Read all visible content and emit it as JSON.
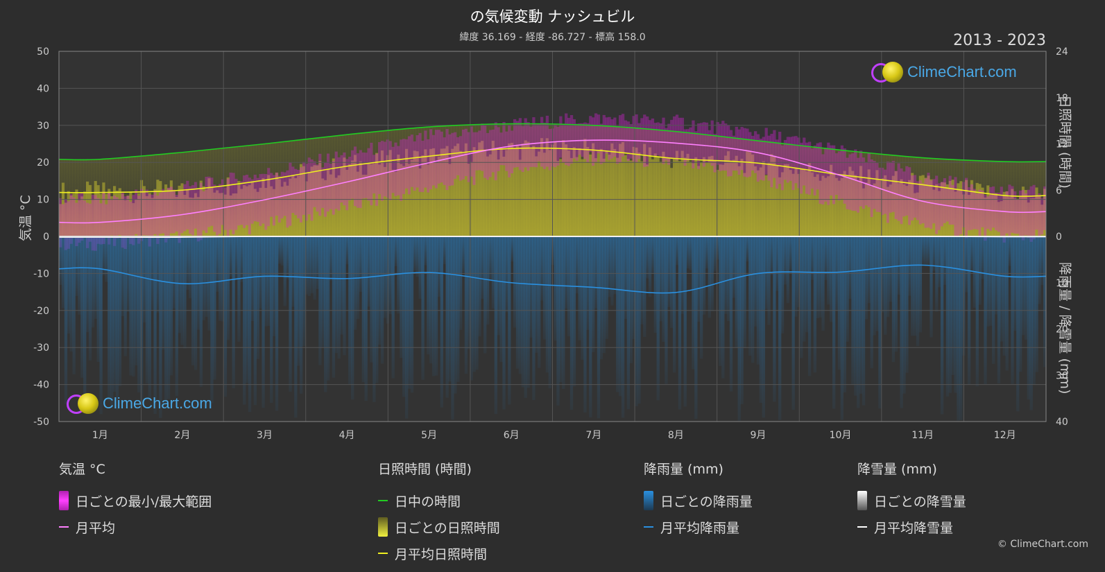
{
  "header": {
    "title": "の気候変動 ナッシュビル",
    "subtitle": "緯度 36.169 - 経度 -86.727 - 標高 158.0",
    "years": "2013 - 2023"
  },
  "axes": {
    "left_title": "気温 °C",
    "right_top_title": "日照時間 (時間)",
    "right_bottom_title": "降雨量 / 降雪量 (mm)"
  },
  "logo": {
    "text": "ClimeChart.com"
  },
  "copyright": "© ClimeChart.com",
  "legend": {
    "temperature": {
      "head": "気温 °C",
      "items": [
        "日ごとの最小/最大範囲",
        "月平均"
      ]
    },
    "sunshine": {
      "head": "日照時間 (時間)",
      "items": [
        "日中の時間",
        "日ごとの日照時間",
        "月平均日照時間"
      ]
    },
    "rain": {
      "head": "降雨量 (mm)",
      "items": [
        "日ごとの降雨量",
        "月平均降雨量"
      ]
    },
    "snow": {
      "head": "降雪量 (mm)",
      "items": [
        "日ごとの降雪量",
        "月平均降雪量"
      ]
    }
  },
  "colors": {
    "background": "#2d2d2d",
    "temp_range": "#e020e0",
    "temp_avg": "#ff80ff",
    "daylight": "#22cc22",
    "sunshine": "#e8e030",
    "sunshine_avg": "#f0f020",
    "rain": "#2a7ab8",
    "rain_avg": "#2a90e0",
    "snow": "#ffffff"
  },
  "chart_data": {
    "type": "line",
    "categories": [
      "1月",
      "2月",
      "3月",
      "4月",
      "5月",
      "6月",
      "7月",
      "8月",
      "9月",
      "10月",
      "11月",
      "12月"
    ],
    "y_left": {
      "ticks": [
        50,
        40,
        30,
        20,
        10,
        0,
        -10,
        -20,
        -30,
        -40,
        -50
      ],
      "range": [
        -50,
        50
      ]
    },
    "y_right_top": {
      "ticks": [
        24,
        18,
        12,
        6,
        0
      ],
      "range": [
        0,
        24
      ]
    },
    "y_right_bottom": {
      "ticks": [
        0,
        10,
        20,
        30,
        40
      ],
      "range": [
        0,
        40
      ]
    },
    "grid": true,
    "series": [
      {
        "name": "月平均",
        "axis": "temperature",
        "values": [
          3.8,
          5.9,
          9.9,
          14.7,
          19.9,
          24.4,
          26.0,
          25.2,
          22.6,
          16.5,
          9.5,
          6.7
        ]
      },
      {
        "name": "日ごとの最小/最大範囲",
        "axis": "temperature",
        "min": [
          -2,
          0,
          3,
          8,
          13,
          18,
          21,
          20,
          16,
          9,
          3,
          0
        ],
        "max": [
          10,
          13,
          17,
          22,
          27,
          30,
          32,
          31,
          28,
          23,
          16,
          12
        ]
      },
      {
        "name": "日中の時間",
        "axis": "sunshine",
        "values": [
          10.0,
          10.9,
          12.0,
          13.2,
          14.2,
          14.6,
          14.4,
          13.6,
          12.4,
          11.2,
          10.2,
          9.7
        ]
      },
      {
        "name": "月平均日照時間",
        "axis": "sunshine",
        "values": [
          5.7,
          6.0,
          7.3,
          9.1,
          10.4,
          11.4,
          11.2,
          10.1,
          9.5,
          8.0,
          6.7,
          5.3
        ]
      },
      {
        "name": "月平均降雨量",
        "axis": "precipitation",
        "values": [
          7.0,
          10.2,
          8.6,
          9.1,
          7.8,
          10.0,
          11.0,
          12.1,
          8.0,
          7.7,
          6.2,
          8.6
        ]
      },
      {
        "name": "月平均降雪量",
        "axis": "precipitation",
        "values": [
          0.2,
          0.2,
          0,
          0,
          0,
          0,
          0,
          0,
          0,
          0,
          0,
          0.1
        ]
      }
    ]
  }
}
